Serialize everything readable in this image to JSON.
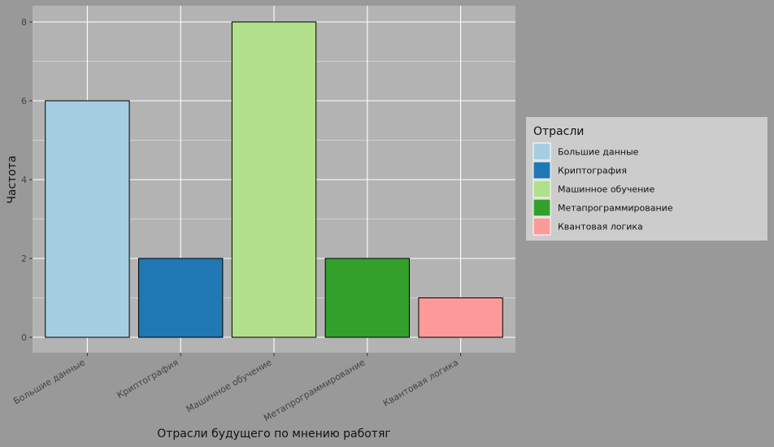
{
  "chart_data": {
    "type": "bar",
    "categories": [
      "Большие данные",
      "Криптография",
      "Машинное обучение",
      "Метапрограммирование",
      "Квантовая логика"
    ],
    "values": [
      6,
      2,
      8,
      2,
      1
    ],
    "colors": [
      "#a6cee3",
      "#1f78b4",
      "#b2df8a",
      "#33a02c",
      "#fb9a99"
    ],
    "xlabel": "Отрасли будущего по мнению работяг",
    "ylabel": "Частота",
    "ylim": [
      0,
      8
    ],
    "yticks": [
      0,
      2,
      4,
      6,
      8
    ],
    "grid": true,
    "legend": {
      "title": "Отрасли",
      "placement": "right",
      "items": [
        "Большие данные",
        "Криптография",
        "Машинное обучение",
        "Метапрограммирование",
        "Квантовая логика"
      ]
    },
    "style": {
      "page_background": "#999999",
      "panel_background": "#b3b3b3",
      "legend_background": "#cccccc",
      "grid_color": "#ffffff",
      "bar_outline": "#000000"
    }
  }
}
